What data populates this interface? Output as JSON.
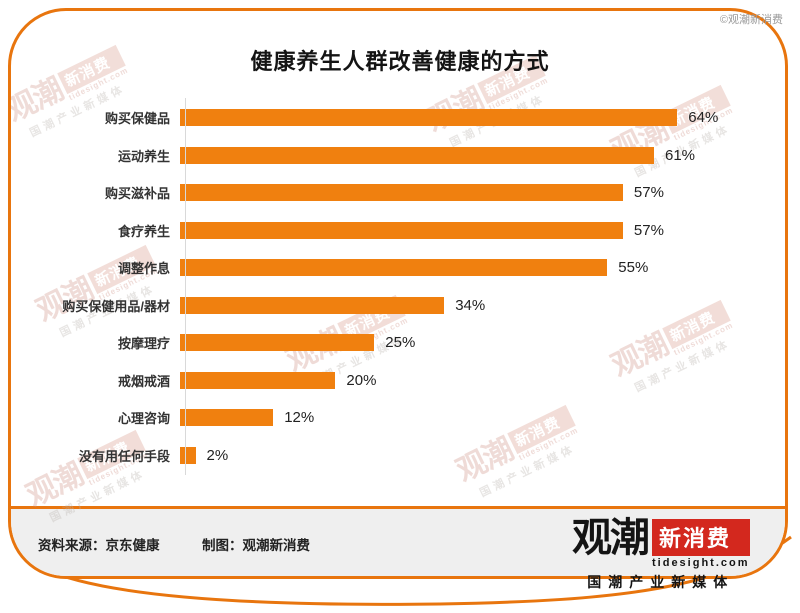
{
  "page": {
    "copyright": "©观潮新消费"
  },
  "chart_data": {
    "type": "bar",
    "orientation": "horizontal",
    "title": "健康养生人群改善健康的方式",
    "categories": [
      "购买保健品",
      "运动养生",
      "购买滋补品",
      "食疗养生",
      "调整作息",
      "购买保健用品/器材",
      "按摩理疗",
      "戒烟戒酒",
      "心理咨询",
      "没有用任何手段"
    ],
    "values": [
      64,
      61,
      57,
      57,
      55,
      34,
      25,
      20,
      12,
      2
    ],
    "unit": "%",
    "xlim": [
      0,
      70
    ],
    "grid": false,
    "legend": "none",
    "bar_color": "#F0800F",
    "value_label_position": "right-of-bar"
  },
  "footer": {
    "source": "资料来源：京东健康",
    "credit": "制图：观潮新消费"
  },
  "logo": {
    "name_black": "观潮",
    "name_red": "新消费",
    "domain": "tidesight.com",
    "tagline": "国潮产业新媒体"
  },
  "watermark": {
    "name_black": "观潮",
    "name_red": "新消费",
    "domain": "tidesight.com",
    "tagline": "国潮产业新媒体"
  },
  "colors": {
    "accent_orange": "#F0800F",
    "frame_orange": "#E8750E",
    "footer_band_gray": "#EFEFEF",
    "logo_red": "#D3281E"
  }
}
